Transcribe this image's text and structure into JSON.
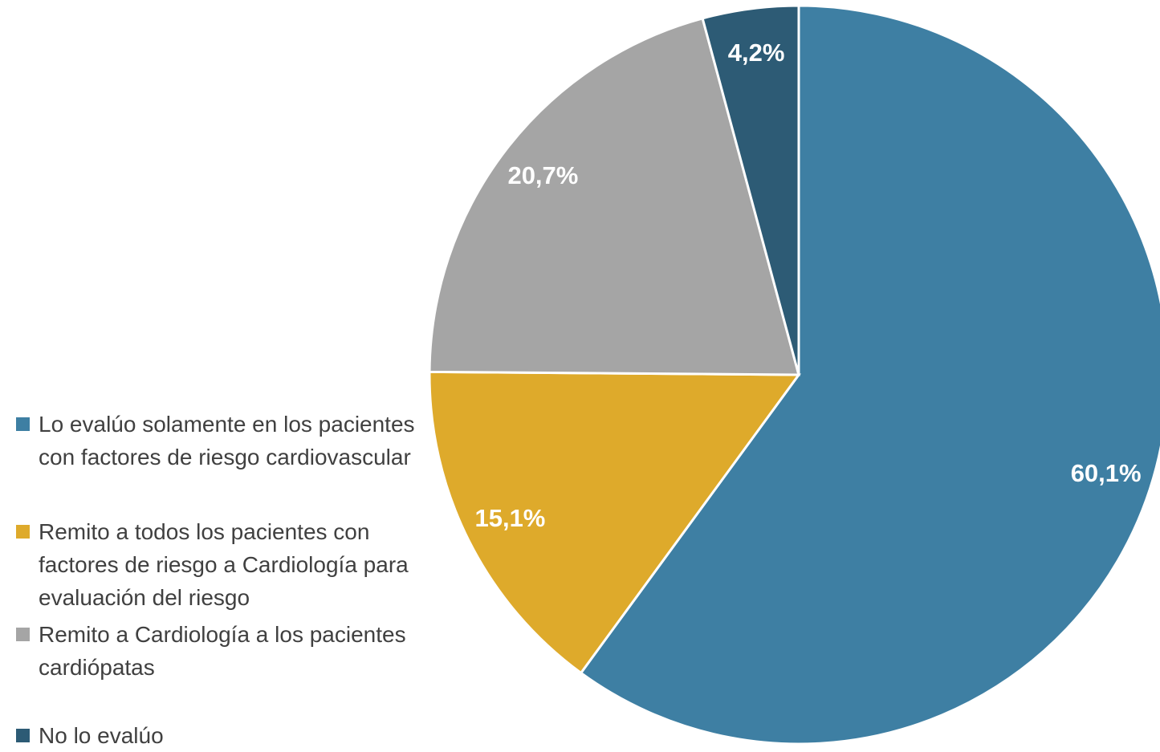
{
  "chart_data": {
    "type": "pie",
    "categories": [
      "Lo evalúo solamente en los pacientes con factores de riesgo cardiovascular",
      "Remito a todos los pacientes con factores de riesgo a Cardiología para evaluación del riesgo",
      "Remito a Cardiología a los pacientes cardiópatas",
      "No lo evalúo"
    ],
    "values": [
      60.1,
      15.1,
      20.7,
      4.2
    ],
    "value_labels": [
      "60,1%",
      "15,1%",
      "20,7%",
      "4,2%"
    ],
    "colors": [
      "#3e7fa3",
      "#deaa2b",
      "#a5a5a5",
      "#2d5b75"
    ],
    "legend": "left"
  }
}
